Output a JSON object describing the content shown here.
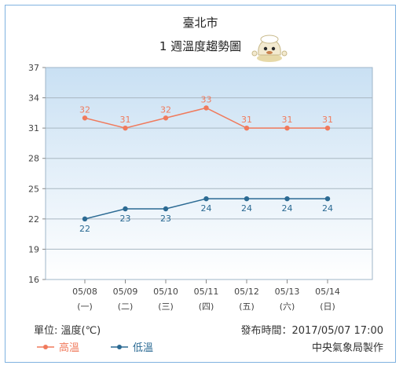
{
  "chart_data": {
    "type": "line",
    "title": "臺北市",
    "subtitle": "1 週溫度趨勢圖",
    "categories": [
      "05/08",
      "05/09",
      "05/10",
      "05/11",
      "05/12",
      "05/13",
      "05/14"
    ],
    "weekdays": [
      "(一)",
      "(二)",
      "(三)",
      "(四)",
      "(五)",
      "(六)",
      "(日)"
    ],
    "ylim": [
      16,
      37
    ],
    "yticks": [
      16,
      19,
      22,
      25,
      28,
      31,
      34,
      37
    ],
    "grid": true,
    "series": [
      {
        "name": "高溫",
        "color": "#f07a5c",
        "values": [
          32,
          31,
          32,
          33,
          31,
          31,
          31
        ]
      },
      {
        "name": "低溫",
        "color": "#2b6a93",
        "values": [
          22,
          23,
          23,
          24,
          24,
          24,
          24
        ]
      }
    ],
    "unit_label": "單位: 溫度(℃)",
    "published": "發布時間：2017/05/07 17:00",
    "source": "中央氣象局製作",
    "legend_placement": "bottom-left"
  }
}
